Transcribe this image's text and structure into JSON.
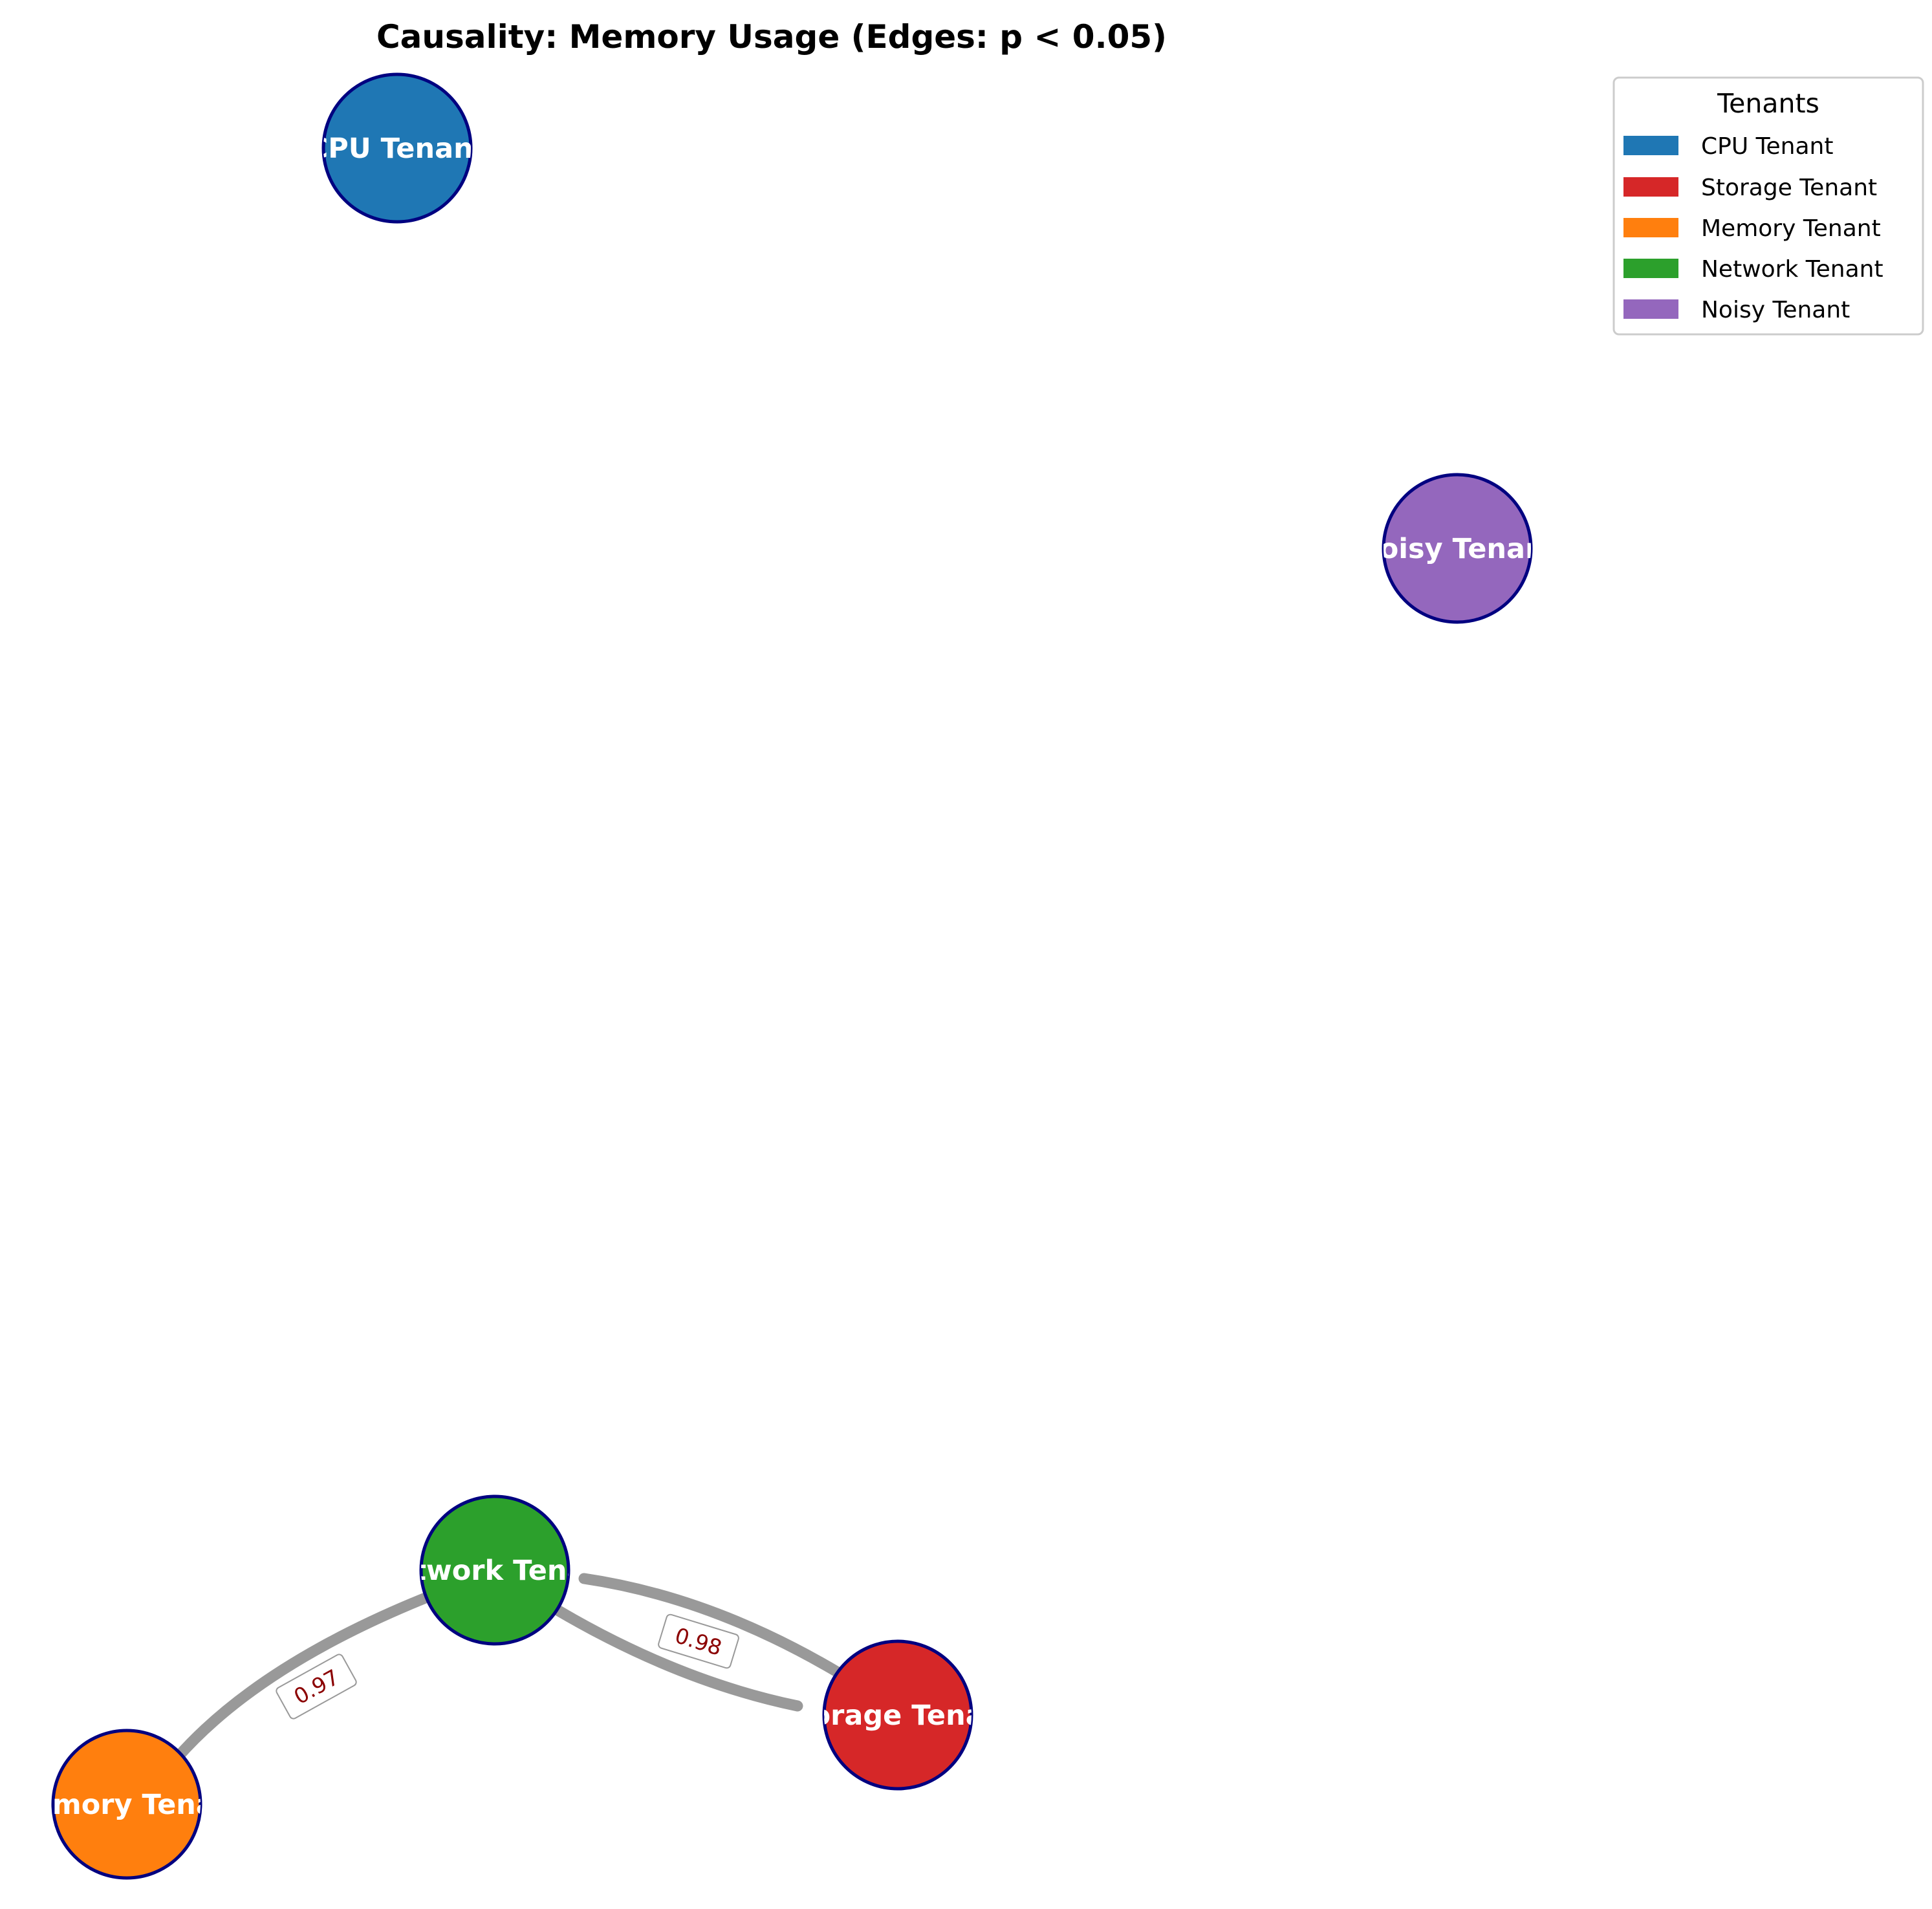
{
  "title": "Causality: Memory Usage (Edges: p < 0.05)",
  "nodes": [
    {
      "id": "cpu",
      "label": "CPU Tenant",
      "color": "#1f77b4"
    },
    {
      "id": "noisy",
      "label": "Noisy Tenant",
      "color": "#9467bd"
    },
    {
      "id": "network",
      "label": "Network Tenant",
      "color": "#2ca02c"
    },
    {
      "id": "storage",
      "label": "Storage Tenant",
      "color": "#d62728"
    },
    {
      "id": "memory",
      "label": "Memory Tenant",
      "color": "#ff7f0e"
    }
  ],
  "edges": [
    {
      "source": "network",
      "target": "memory",
      "weight": "0.97"
    },
    {
      "source": "network",
      "target": "storage",
      "weight": "0.98"
    },
    {
      "source": "storage",
      "target": "network",
      "weight": "0.98"
    }
  ],
  "legend": {
    "title": "Tenants",
    "items": [
      {
        "label": "CPU Tenant",
        "color": "#1f77b4"
      },
      {
        "label": "Storage Tenant",
        "color": "#d62728"
      },
      {
        "label": "Memory Tenant",
        "color": "#ff7f0e"
      },
      {
        "label": "Network Tenant",
        "color": "#2ca02c"
      },
      {
        "label": "Noisy Tenant",
        "color": "#9467bd"
      }
    ]
  },
  "styles": {
    "edge_color": "#999999",
    "node_border_color": "#000080",
    "label_color": "#8b0000"
  }
}
